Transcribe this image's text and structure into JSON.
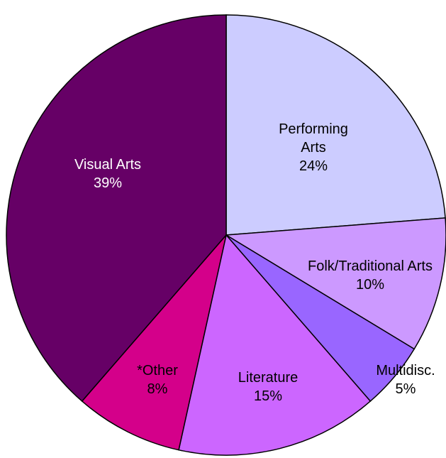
{
  "chart_data": {
    "type": "pie",
    "categories": [
      "Performing Arts",
      "Folk/Traditional Arts",
      "Multidisc.",
      "Literature",
      "*Other",
      "Visual Arts"
    ],
    "values": [
      24,
      10,
      5,
      15,
      8,
      39
    ],
    "value_labels": [
      "24%",
      "10%",
      "5%",
      "15%",
      "8%",
      "39%"
    ],
    "colors": [
      "#ccccff",
      "#cc99ff",
      "#9966ff",
      "#cc66ff",
      "#d4008a",
      "#660066"
    ],
    "label_colors": [
      "#000000",
      "#000000",
      "#000000",
      "#000000",
      "#000000",
      "#ffffff"
    ]
  }
}
